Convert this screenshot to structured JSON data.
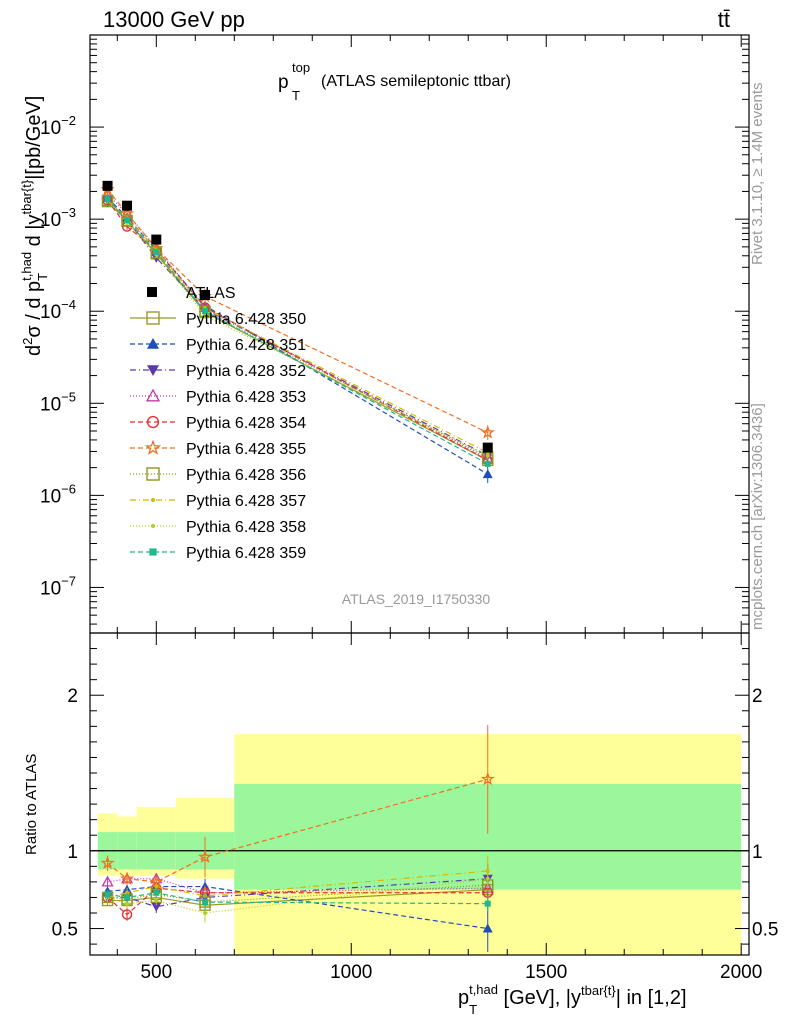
{
  "header": {
    "energy_label": "13000 GeV pp",
    "process_label": "tt̄",
    "plot_title_main": "p",
    "plot_title_sup": "top",
    "plot_title_sub": "T",
    "plot_title_rest": "(ATLAS semileptonic ttbar)",
    "analysis_id": "ATLAS_2019_I1750330",
    "rivet_label": "Rivet 3.1.10, ≥ 1.4M events",
    "mcplots_label": "mcplots.cern.ch [arXiv:1306.3436]"
  },
  "axes": {
    "main_ylabel": "d²σ / d p_T^{t,had} d |y^{tbar{t}}| [pb/GeV]",
    "ratio_ylabel": "Ratio to ATLAS",
    "xlabel": "p_T^{t,had} [GeV], |y^{tbar{t}}| in [1,2]"
  },
  "chart_data": [
    {
      "type": "scatter",
      "panel": "main",
      "y_scale": "log",
      "xlim": [
        330,
        2020
      ],
      "ylim": [
        3.2e-08,
        0.1
      ],
      "x_ticks": [
        500,
        1000,
        1500,
        2000
      ],
      "y_ticks": [
        {
          "value": 1e-07,
          "mantissa": "10",
          "exp": "−7"
        },
        {
          "value": 1e-06,
          "mantissa": "10",
          "exp": "−6"
        },
        {
          "value": 1e-05,
          "mantissa": "10",
          "exp": "−5"
        },
        {
          "value": 0.0001,
          "mantissa": "10",
          "exp": "−4"
        },
        {
          "value": 0.001,
          "mantissa": "10",
          "exp": "−3"
        },
        {
          "value": 0.01,
          "mantissa": "10",
          "exp": "−2"
        }
      ],
      "x": [
        375,
        425,
        500,
        625,
        1350
      ],
      "data": {
        "name": "ATLAS",
        "values": [
          0.0023,
          0.0014,
          0.0006,
          0.00015,
          3.3e-06
        ]
      },
      "series": [
        {
          "name": "Pythia 6.428 350",
          "color": "#9a9a2a",
          "dash": "",
          "marker": "square-open",
          "values": [
            0.00155,
            0.00095,
            0.00042,
            9.7e-05,
            2.4e-06
          ],
          "err": 0.08
        },
        {
          "name": "Pythia 6.428 351",
          "color": "#1f4fb5",
          "dash": "5,3",
          "marker": "triangle-up",
          "values": [
            0.0017,
            0.00105,
            0.00046,
            0.000115,
            1.7e-06
          ],
          "err": 0.25
        },
        {
          "name": "Pythia 6.428 352",
          "color": "#5a3aaa",
          "dash": "6,3,1,3",
          "marker": "triangle-down",
          "values": [
            0.0016,
            0.00098,
            0.00038,
            0.000105,
            2.7e-06
          ],
          "err": 0.08
        },
        {
          "name": "Pythia 6.428 353",
          "color": "#c23aa8",
          "dash": "1,2",
          "marker": "triangle-open",
          "values": [
            0.00185,
            0.00115,
            0.00049,
            0.00011,
            2.5e-06
          ],
          "err": 0.08
        },
        {
          "name": "Pythia 6.428 354",
          "color": "#e03030",
          "dash": "5,3",
          "marker": "circle-open",
          "values": [
            0.0016,
            0.00083,
            0.00046,
            0.00011,
            2.4e-06
          ],
          "err": 0.08
        },
        {
          "name": "Pythia 6.428 355",
          "color": "#f07020",
          "dash": "5,3",
          "marker": "star-open",
          "values": [
            0.0021,
            0.00115,
            0.00048,
            0.000145,
            4.8e-06
          ],
          "err": 0.2
        },
        {
          "name": "Pythia 6.428 356",
          "color": "#8a9a1a",
          "dash": "1,2",
          "marker": "square-open",
          "values": [
            0.0016,
            0.00097,
            0.00043,
            0.0001,
            2.6e-06
          ],
          "err": 0.08
        },
        {
          "name": "Pythia 6.428 357",
          "color": "#d8b800",
          "dash": "6,3,1,3",
          "marker": "dot",
          "values": [
            0.0016,
            0.00102,
            0.00046,
            0.000107,
            2.9e-06
          ],
          "err": 0.08
        },
        {
          "name": "Pythia 6.428 358",
          "color": "#b8cc20",
          "dash": "1,2",
          "marker": "dot",
          "values": [
            0.0016,
            0.00093,
            0.00041,
            9e-05,
            2.7e-06
          ],
          "err": 0.08
        },
        {
          "name": "Pythia 6.428 359",
          "color": "#20b88a",
          "dash": "5,3",
          "marker": "square-filled",
          "values": [
            0.00165,
            0.00098,
            0.00044,
            0.0001,
            2.2e-06
          ],
          "err": 0.08
        }
      ]
    },
    {
      "type": "scatter",
      "panel": "ratio",
      "ylim": [
        0.33,
        2.4
      ],
      "y_ticks": [
        0.5,
        1,
        2
      ],
      "x_bins": [
        [
          350,
          400
        ],
        [
          400,
          450
        ],
        [
          450,
          550
        ],
        [
          550,
          700
        ],
        [
          700,
          2000
        ]
      ],
      "band_inner": [
        [
          0.88,
          1.12
        ],
        [
          0.88,
          1.12
        ],
        [
          0.88,
          1.12
        ],
        [
          0.88,
          1.12
        ],
        [
          0.75,
          1.43
        ]
      ],
      "band_outer": [
        [
          0.84,
          1.24
        ],
        [
          0.84,
          1.22
        ],
        [
          0.84,
          1.28
        ],
        [
          0.82,
          1.34
        ],
        [
          0.3,
          1.75
        ]
      ],
      "x": [
        375,
        425,
        500,
        625,
        1350
      ],
      "series": [
        {
          "name": "Pythia 6.428 350",
          "values": [
            0.68,
            0.68,
            0.7,
            0.65,
            0.75
          ],
          "err": [
            0.03,
            0.03,
            0.03,
            0.05,
            0.05
          ]
        },
        {
          "name": "Pythia 6.428 351",
          "values": [
            0.74,
            0.75,
            0.77,
            0.77,
            0.5
          ],
          "err": [
            0.03,
            0.03,
            0.03,
            0.05,
            0.15
          ]
        },
        {
          "name": "Pythia 6.428 352",
          "values": [
            0.7,
            0.7,
            0.64,
            0.7,
            0.82
          ],
          "err": [
            0.03,
            0.03,
            0.04,
            0.05,
            0.1
          ]
        },
        {
          "name": "Pythia 6.428 353",
          "values": [
            0.8,
            0.82,
            0.82,
            0.73,
            0.76
          ],
          "err": [
            0.03,
            0.03,
            0.03,
            0.05,
            0.05
          ]
        },
        {
          "name": "Pythia 6.428 354",
          "values": [
            0.7,
            0.59,
            0.76,
            0.73,
            0.73
          ],
          "err": [
            0.03,
            0.04,
            0.03,
            0.05,
            0.05
          ]
        },
        {
          "name": "Pythia 6.428 355",
          "values": [
            0.92,
            0.82,
            0.8,
            0.96,
            1.46
          ],
          "err": [
            0.05,
            0.04,
            0.04,
            0.13,
            0.35
          ]
        },
        {
          "name": "Pythia 6.428 356",
          "values": [
            0.7,
            0.69,
            0.72,
            0.67,
            0.78
          ],
          "err": [
            0.03,
            0.03,
            0.03,
            0.05,
            0.06
          ]
        },
        {
          "name": "Pythia 6.428 357",
          "values": [
            0.7,
            0.73,
            0.77,
            0.71,
            0.87
          ],
          "err": [
            0.03,
            0.03,
            0.03,
            0.06,
            0.1
          ]
        },
        {
          "name": "Pythia 6.428 358",
          "values": [
            0.7,
            0.66,
            0.68,
            0.6,
            0.82
          ],
          "err": [
            0.03,
            0.03,
            0.03,
            0.06,
            0.06
          ]
        },
        {
          "name": "Pythia 6.428 359",
          "values": [
            0.72,
            0.7,
            0.73,
            0.67,
            0.66
          ],
          "err": [
            0.03,
            0.03,
            0.03,
            0.05,
            0.05
          ]
        }
      ]
    }
  ],
  "legend": {
    "data_label": "ATLAS",
    "entries": [
      "Pythia 6.428 350",
      "Pythia 6.428 351",
      "Pythia 6.428 352",
      "Pythia 6.428 353",
      "Pythia 6.428 354",
      "Pythia 6.428 355",
      "Pythia 6.428 356",
      "Pythia 6.428 357",
      "Pythia 6.428 358",
      "Pythia 6.428 359"
    ]
  },
  "colors": {
    "band_inner": "#9cf79c",
    "band_outer": "#ffff99",
    "data": "#000000",
    "annotation": "#9a9a9a"
  }
}
